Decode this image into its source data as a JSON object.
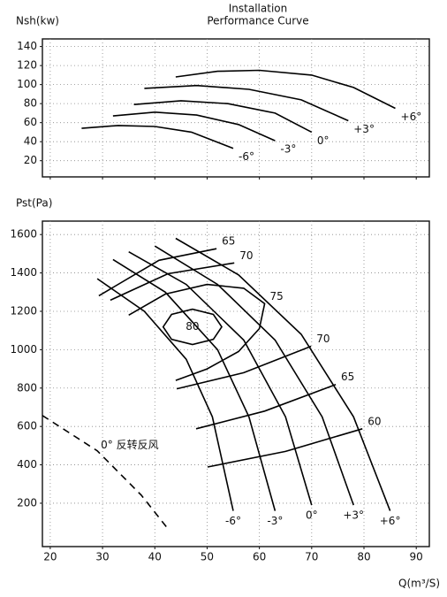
{
  "chart_data": [
    {
      "type": "line",
      "title": "Installation",
      "subtitle": "Performance Curve",
      "y_label": "Nsh(kw)",
      "xlim": [
        18.5,
        92.5
      ],
      "ylim": [
        3,
        148
      ],
      "xticks": [
        20,
        30,
        40,
        50,
        60,
        70,
        80,
        90
      ],
      "yticks": [
        20,
        40,
        60,
        80,
        100,
        120,
        140
      ],
      "grid": true,
      "color": "#000000",
      "series": [
        {
          "name": "-6°",
          "x": [
            26,
            33,
            40,
            47,
            55
          ],
          "values": [
            54,
            57,
            56,
            50,
            33
          ]
        },
        {
          "name": "-3°",
          "x": [
            32,
            40,
            48,
            56,
            63
          ],
          "values": [
            67,
            71,
            68,
            58,
            41
          ]
        },
        {
          "name": "0°",
          "x": [
            36,
            45,
            54,
            63,
            70
          ],
          "values": [
            79,
            83,
            80,
            70,
            50
          ]
        },
        {
          "name": "+3°",
          "x": [
            38,
            48,
            58,
            68,
            77
          ],
          "values": [
            96,
            99,
            95,
            84,
            62
          ]
        },
        {
          "name": "+6°",
          "x": [
            44,
            52,
            60,
            70,
            78,
            86
          ],
          "values": [
            108,
            114,
            115,
            110,
            97,
            75
          ]
        }
      ]
    },
    {
      "type": "line",
      "y_label": "Pst(Pa)",
      "x_label": "Q(m³/S)",
      "xlim": [
        18.5,
        92.5
      ],
      "ylim": [
        -26,
        1670
      ],
      "xticks": [
        20,
        30,
        40,
        50,
        60,
        70,
        80,
        90
      ],
      "yticks": [
        200,
        400,
        600,
        800,
        1000,
        1200,
        1400,
        1600
      ],
      "grid": true,
      "color": "#000000",
      "series": [
        {
          "name": "-6°",
          "x": [
            29,
            38,
            46,
            51,
            55
          ],
          "values": [
            1370,
            1200,
            950,
            650,
            160
          ]
        },
        {
          "name": "-3°",
          "x": [
            32,
            42,
            52,
            58,
            63
          ],
          "values": [
            1470,
            1300,
            1000,
            650,
            160
          ]
        },
        {
          "name": "0°",
          "x": [
            35,
            46,
            57,
            65,
            70
          ],
          "values": [
            1510,
            1340,
            1050,
            650,
            190
          ]
        },
        {
          "name": "+3°",
          "x": [
            40,
            52,
            63,
            72,
            78
          ],
          "values": [
            1540,
            1340,
            1050,
            650,
            190
          ]
        },
        {
          "name": "+6°",
          "x": [
            44,
            56,
            68,
            78,
            85
          ],
          "values": [
            1580,
            1390,
            1080,
            650,
            160
          ]
        }
      ],
      "contours": [
        {
          "label": "65",
          "x": [
            29.3,
            40.8,
            51.8
          ],
          "values": [
            1281,
            1466,
            1526
          ]
        },
        {
          "label": "70",
          "x": [
            31.5,
            42.5,
            55.2
          ],
          "values": [
            1258,
            1396,
            1452
          ]
        },
        {
          "label": "75",
          "x": [
            35,
            42,
            50,
            57,
            61,
            60,
            56,
            50,
            44
          ],
          "values": [
            1180,
            1290,
            1340,
            1320,
            1240,
            1110,
            990,
            900,
            840
          ]
        },
        {
          "label": "80",
          "closed": true,
          "x": [
            52.8,
            51.2,
            47.2,
            43.2,
            41.6,
            43.2,
            47.2,
            51.2
          ],
          "values": [
            1119,
            1184,
            1211,
            1184,
            1119,
            1054,
            1027,
            1054
          ]
        },
        {
          "label": "70",
          "x": [
            44.2,
            57,
            69.9
          ],
          "values": [
            796,
            880,
            1018
          ]
        },
        {
          "label": "65",
          "x": [
            47.9,
            61,
            74.6
          ],
          "values": [
            588,
            680,
            819
          ]
        },
        {
          "label": "60",
          "x": [
            50.1,
            65,
            79.7
          ],
          "values": [
            389,
            470,
            588
          ]
        }
      ],
      "reverse_curve": {
        "label": "0° 反转反风",
        "x": [
          18.5,
          29,
          37.4,
          42.8
        ],
        "values": [
          657,
          473,
          242,
          57
        ]
      }
    }
  ]
}
